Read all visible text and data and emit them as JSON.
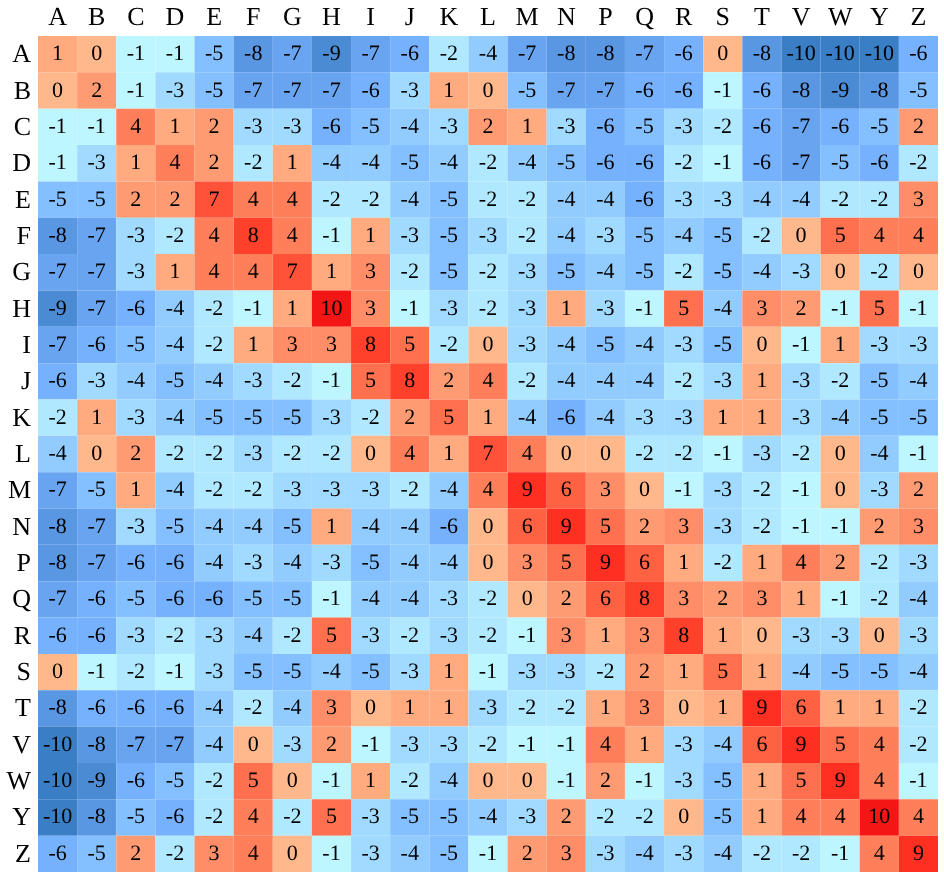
{
  "chart_data": {
    "type": "heatmap",
    "categories": [
      "A",
      "B",
      "C",
      "D",
      "E",
      "F",
      "G",
      "H",
      "I",
      "J",
      "K",
      "L",
      "M",
      "N",
      "P",
      "Q",
      "R",
      "S",
      "T",
      "V",
      "W",
      "Y",
      "Z"
    ],
    "y_categories": [
      "A",
      "B",
      "C",
      "D",
      "E",
      "F",
      "G",
      "H",
      "I",
      "J",
      "K",
      "L",
      "M",
      "N",
      "P",
      "Q",
      "R",
      "S",
      "T",
      "V",
      "W",
      "Y",
      "Z"
    ],
    "data_labels": true,
    "cells": [
      [
        1,
        0,
        -1,
        -1,
        -5,
        -8,
        -7,
        -9,
        -7,
        -6,
        -2,
        -4,
        -7,
        -8,
        -8,
        -7,
        -6,
        0,
        -8,
        -10,
        -10,
        -10,
        -6
      ],
      [
        0,
        2,
        -1,
        -3,
        -5,
        -7,
        -7,
        -7,
        -6,
        -3,
        1,
        0,
        -5,
        -7,
        -7,
        -6,
        -6,
        -1,
        -6,
        -8,
        -9,
        -8,
        -5
      ],
      [
        -1,
        -1,
        4,
        1,
        2,
        -3,
        -3,
        -6,
        -5,
        -4,
        -3,
        2,
        1,
        -3,
        -6,
        -5,
        -3,
        -2,
        -6,
        -7,
        -6,
        -5,
        2
      ],
      [
        -1,
        -3,
        1,
        4,
        2,
        -2,
        1,
        -4,
        -4,
        -5,
        -4,
        -2,
        -4,
        -5,
        -6,
        -6,
        -2,
        -1,
        -6,
        -7,
        -5,
        -6,
        -2
      ],
      [
        -5,
        -5,
        2,
        2,
        7,
        4,
        4,
        -2,
        -2,
        -4,
        -5,
        -2,
        -2,
        -4,
        -4,
        -6,
        -3,
        -3,
        -4,
        -4,
        -2,
        -2,
        3
      ],
      [
        -8,
        -7,
        -3,
        -2,
        4,
        8,
        4,
        -1,
        1,
        -3,
        -5,
        -3,
        -2,
        -4,
        -3,
        -5,
        -4,
        -5,
        -2,
        0,
        5,
        4,
        4
      ],
      [
        -7,
        -7,
        -3,
        1,
        4,
        4,
        7,
        1,
        3,
        -2,
        -5,
        -2,
        -3,
        -5,
        -4,
        -5,
        -2,
        -5,
        -4,
        -3,
        0,
        -2,
        0
      ],
      [
        -9,
        -7,
        -6,
        -4,
        -2,
        -1,
        1,
        10,
        3,
        -1,
        -3,
        -2,
        -3,
        1,
        -3,
        -1,
        5,
        -4,
        3,
        2,
        -1,
        5,
        -1
      ],
      [
        -7,
        -6,
        -5,
        -4,
        -2,
        1,
        3,
        3,
        8,
        5,
        -2,
        0,
        -3,
        -4,
        -5,
        -4,
        -3,
        -5,
        0,
        -1,
        1,
        -3,
        -3
      ],
      [
        -6,
        -3,
        -4,
        -5,
        -4,
        -3,
        -2,
        -1,
        5,
        8,
        2,
        4,
        -2,
        -4,
        -4,
        -4,
        -2,
        -3,
        1,
        -3,
        -2,
        -5,
        -4
      ],
      [
        -2,
        1,
        -3,
        -4,
        -5,
        -5,
        -5,
        -3,
        -2,
        2,
        5,
        1,
        -4,
        -6,
        -4,
        -3,
        -3,
        1,
        1,
        -3,
        -4,
        -5,
        -5
      ],
      [
        -4,
        0,
        2,
        -2,
        -2,
        -3,
        -2,
        -2,
        0,
        4,
        1,
        7,
        4,
        0,
        0,
        -2,
        -2,
        -1,
        -3,
        -2,
        0,
        -4,
        -1
      ],
      [
        -7,
        -5,
        1,
        -4,
        -2,
        -2,
        -3,
        -3,
        -3,
        -2,
        -4,
        4,
        9,
        6,
        3,
        0,
        -1,
        -3,
        -2,
        -1,
        0,
        -3,
        2
      ],
      [
        -8,
        -7,
        -3,
        -5,
        -4,
        -4,
        -5,
        1,
        -4,
        -4,
        -6,
        0,
        6,
        9,
        5,
        2,
        3,
        -3,
        -2,
        -1,
        -1,
        2,
        3
      ],
      [
        -8,
        -7,
        -6,
        -6,
        -4,
        -3,
        -4,
        -3,
        -5,
        -4,
        -4,
        0,
        3,
        5,
        9,
        6,
        1,
        -2,
        1,
        4,
        2,
        -2,
        -3
      ],
      [
        -7,
        -6,
        -5,
        -6,
        -6,
        -5,
        -5,
        -1,
        -4,
        -4,
        -3,
        -2,
        0,
        2,
        6,
        8,
        3,
        2,
        3,
        1,
        -1,
        -2,
        -4
      ],
      [
        -6,
        -6,
        -3,
        -2,
        -3,
        -4,
        -2,
        5,
        -3,
        -2,
        -3,
        -2,
        -1,
        3,
        1,
        3,
        8,
        1,
        0,
        -3,
        -3,
        0,
        -3
      ],
      [
        0,
        -1,
        -2,
        -1,
        -3,
        -5,
        -5,
        -4,
        -5,
        -3,
        1,
        -1,
        -3,
        -3,
        -2,
        2,
        1,
        5,
        1,
        -4,
        -5,
        -5,
        -4
      ],
      [
        -8,
        -6,
        -6,
        -6,
        -4,
        -2,
        -4,
        3,
        0,
        1,
        1,
        -3,
        -2,
        -2,
        1,
        3,
        0,
        1,
        9,
        6,
        1,
        1,
        -2
      ],
      [
        -10,
        -8,
        -7,
        -7,
        -4,
        0,
        -3,
        2,
        -1,
        -3,
        -3,
        -2,
        -1,
        -1,
        4,
        1,
        -3,
        -4,
        6,
        9,
        5,
        4,
        -2
      ],
      [
        -10,
        -9,
        -6,
        -5,
        -2,
        5,
        0,
        -1,
        1,
        -2,
        -4,
        0,
        0,
        -1,
        2,
        -1,
        -3,
        -5,
        1,
        5,
        9,
        4,
        -1
      ],
      [
        -10,
        -8,
        -5,
        -6,
        -2,
        4,
        -2,
        5,
        -3,
        -5,
        -5,
        -4,
        -3,
        2,
        -2,
        -2,
        0,
        -5,
        1,
        4,
        4,
        10,
        4
      ],
      [
        -6,
        -5,
        2,
        -2,
        3,
        4,
        0,
        -1,
        -3,
        -4,
        -5,
        -1,
        2,
        3,
        -3,
        -4,
        -3,
        -4,
        -2,
        -2,
        -1,
        4,
        9
      ]
    ]
  }
}
